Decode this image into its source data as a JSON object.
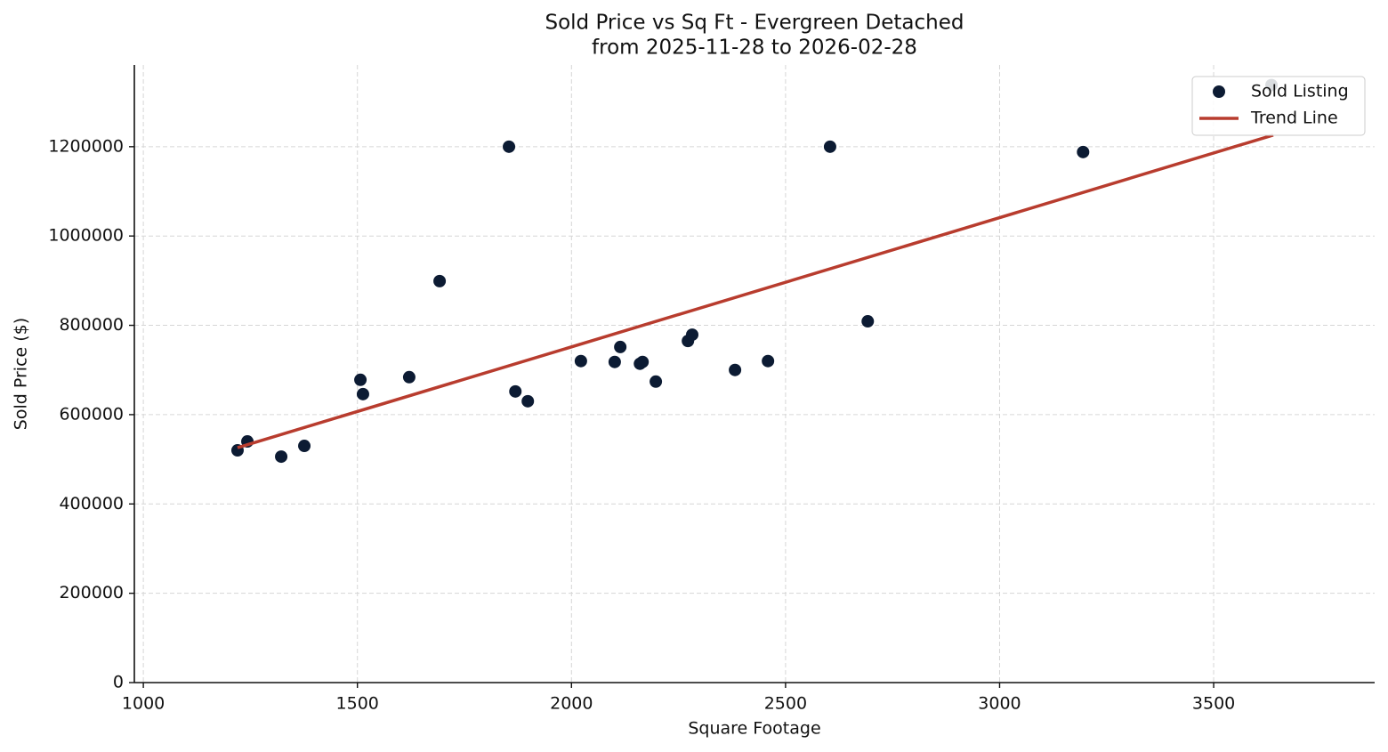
{
  "chart_data": {
    "type": "scatter",
    "title": "Sold Price vs Sq Ft - Evergreen Detached",
    "subtitle": "from 2025-11-28 to 2026-02-28",
    "x_label": "Square Footage",
    "y_label": "Sold Price ($)",
    "xlim": [
      979,
      3876
    ],
    "ylim": [
      0,
      1383000
    ],
    "xticks": [
      1000,
      1500,
      2000,
      2500,
      3000,
      3500
    ],
    "yticks": [
      0,
      200000,
      400000,
      600000,
      800000,
      1000000,
      1200000
    ],
    "grid": true,
    "legend": "upper right",
    "series": [
      {
        "name": "Sold Listing",
        "type": "scatter",
        "color": "#0c1b33",
        "x": [
          1220,
          1243,
          1322,
          1376,
          1507,
          1513,
          1621,
          1692,
          1854,
          1869,
          1898,
          2022,
          2101,
          2114,
          2160,
          2166,
          2197,
          2272,
          2282,
          2382,
          2459,
          2604,
          2692,
          3195,
          3635
        ],
        "values": [
          520000,
          540000,
          506000,
          530000,
          678000,
          646000,
          684000,
          899000,
          1200000,
          652000,
          630000,
          720000,
          718000,
          751500,
          714000,
          718000,
          674000,
          765000,
          779000,
          700000,
          720000,
          1200000,
          809000,
          1188000,
          1338000
        ]
      },
      {
        "name": "Trend Line",
        "type": "line",
        "color": "#b83c2e",
        "x": [
          1220,
          3639
        ],
        "values": [
          526000,
          1226000
        ]
      }
    ]
  }
}
